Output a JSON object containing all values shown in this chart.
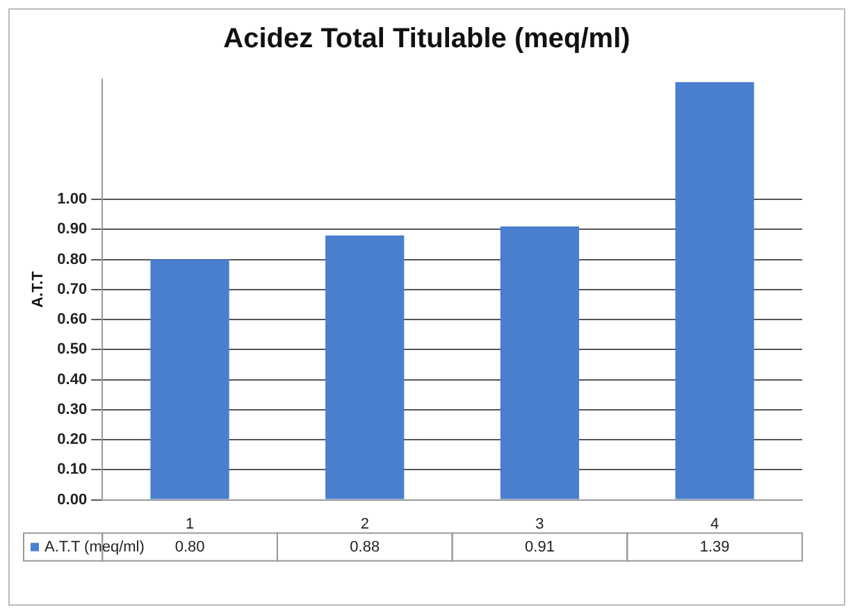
{
  "chart_data": {
    "type": "bar",
    "title": "Acidez Total Titulable (meq/ml)",
    "ylabel": "A.T.T",
    "categories": [
      "1",
      "2",
      "3",
      "4"
    ],
    "series": [
      {
        "name": "A.T.T (meq/ml)",
        "color": "#4a7fd0",
        "values": [
          0.8,
          0.88,
          0.91,
          1.39
        ],
        "value_labels": [
          "0.80",
          "0.88",
          "0.91",
          "1.39"
        ]
      }
    ],
    "ylim": [
      0,
      1.4
    ],
    "yticks": [
      {
        "value": 0,
        "label": "0.00"
      },
      {
        "value": 0.1,
        "label": "0.10"
      },
      {
        "value": 0.2,
        "label": "0.20"
      },
      {
        "value": 0.3,
        "label": "0.30"
      },
      {
        "value": 0.4,
        "label": "0.40"
      },
      {
        "value": 0.5,
        "label": "0.50"
      },
      {
        "value": 0.6,
        "label": "0.60"
      },
      {
        "value": 0.7,
        "label": "0.70"
      },
      {
        "value": 0.8,
        "label": "0.80"
      },
      {
        "value": 0.9,
        "label": "0.90"
      },
      {
        "value": 1,
        "label": "1.00"
      }
    ],
    "grid": "y",
    "legend": "bottom"
  }
}
